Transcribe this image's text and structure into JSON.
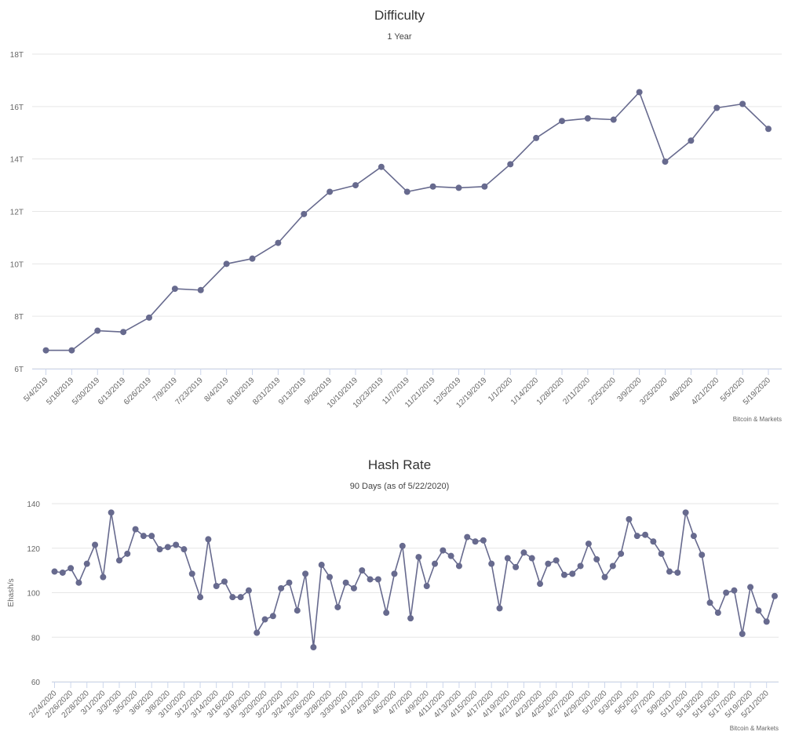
{
  "chart_data": [
    {
      "type": "line",
      "title": "Difficulty",
      "subtitle": "1 Year",
      "xlabel": "",
      "ylabel": "",
      "credit": "Bitcoin & Markets",
      "ylim": [
        6,
        18
      ],
      "yticks": [
        6,
        8,
        10,
        12,
        14,
        16,
        18
      ],
      "ytick_suffix": "T",
      "grid": true,
      "color": "#676a8e",
      "categories": [
        "5/4/2019",
        "5/18/2019",
        "5/30/2019",
        "6/13/2019",
        "6/26/2019",
        "7/9/2019",
        "7/23/2019",
        "8/4/2019",
        "8/18/2019",
        "8/31/2019",
        "9/13/2019",
        "9/26/2019",
        "10/10/2019",
        "10/23/2019",
        "11/7/2019",
        "11/21/2019",
        "12/5/2019",
        "12/19/2019",
        "1/1/2020",
        "1/14/2020",
        "1/28/2020",
        "2/11/2020",
        "2/25/2020",
        "3/9/2020",
        "3/25/2020",
        "4/8/2020",
        "4/21/2020",
        "5/5/2020",
        "5/19/2020"
      ],
      "values": [
        6.7,
        6.7,
        7.45,
        7.4,
        7.95,
        9.05,
        9.0,
        10.0,
        10.2,
        10.8,
        11.9,
        12.75,
        13.0,
        13.7,
        12.75,
        12.95,
        12.9,
        12.95,
        13.8,
        14.8,
        15.45,
        15.55,
        15.5,
        16.55,
        13.9,
        14.7,
        15.95,
        16.1,
        15.15
      ]
    },
    {
      "type": "line",
      "title": "Hash Rate",
      "subtitle": "90 Days (as of 5/22/2020)",
      "xlabel": "",
      "ylabel": "Ehash/s",
      "credit": "Bitcoin & Markets",
      "ylim": [
        60,
        140
      ],
      "yticks": [
        60,
        80,
        100,
        120,
        140
      ],
      "ytick_suffix": "",
      "grid": true,
      "color": "#676a8e",
      "tick_labels": [
        "2/24/2020",
        "2/26/2020",
        "2/28/2020",
        "3/1/2020",
        "3/3/2020",
        "3/5/2020",
        "3/6/2020",
        "3/8/2020",
        "3/10/2020",
        "3/12/2020",
        "3/14/2020",
        "3/16/2020",
        "3/18/2020",
        "3/20/2020",
        "3/22/2020",
        "3/24/2020",
        "3/26/2020",
        "3/28/2020",
        "3/30/2020",
        "4/1/2020",
        "4/3/2020",
        "4/5/2020",
        "4/7/2020",
        "4/9/2020",
        "4/11/2020",
        "4/13/2020",
        "4/15/2020",
        "4/17/2020",
        "4/19/2020",
        "4/21/2020",
        "4/23/2020",
        "4/25/2020",
        "4/27/2020",
        "4/29/2020",
        "5/1/2020",
        "5/3/2020",
        "5/5/2020",
        "5/7/2020",
        "5/9/2020",
        "5/11/2020",
        "5/13/2020",
        "5/15/2020",
        "5/17/2020",
        "5/19/2020",
        "5/21/2020"
      ],
      "values": [
        109.5,
        109,
        111,
        104.5,
        113,
        121.5,
        107,
        136,
        114.5,
        117.5,
        128.5,
        125.5,
        125.5,
        119.5,
        120.5,
        121.5,
        119.5,
        108.5,
        98,
        124,
        103,
        105,
        98,
        98,
        101,
        82,
        88,
        89.5,
        102,
        104.5,
        92,
        108.5,
        75.5,
        112.5,
        107,
        93.5,
        104.5,
        102,
        110,
        106,
        106,
        91,
        108.5,
        121,
        88.5,
        116,
        103,
        113,
        119,
        116.5,
        112,
        125,
        123,
        123.5,
        113,
        93,
        115.5,
        111.5,
        118,
        115.5,
        104,
        113,
        114.5,
        108,
        108.5,
        112,
        122,
        115,
        107,
        112,
        117.5,
        133,
        125.5,
        126,
        123,
        117.5,
        109.5,
        109,
        136,
        125.5,
        117,
        95.5,
        91,
        100,
        101,
        81.5,
        102.5,
        92,
        87,
        98.5
      ]
    }
  ]
}
